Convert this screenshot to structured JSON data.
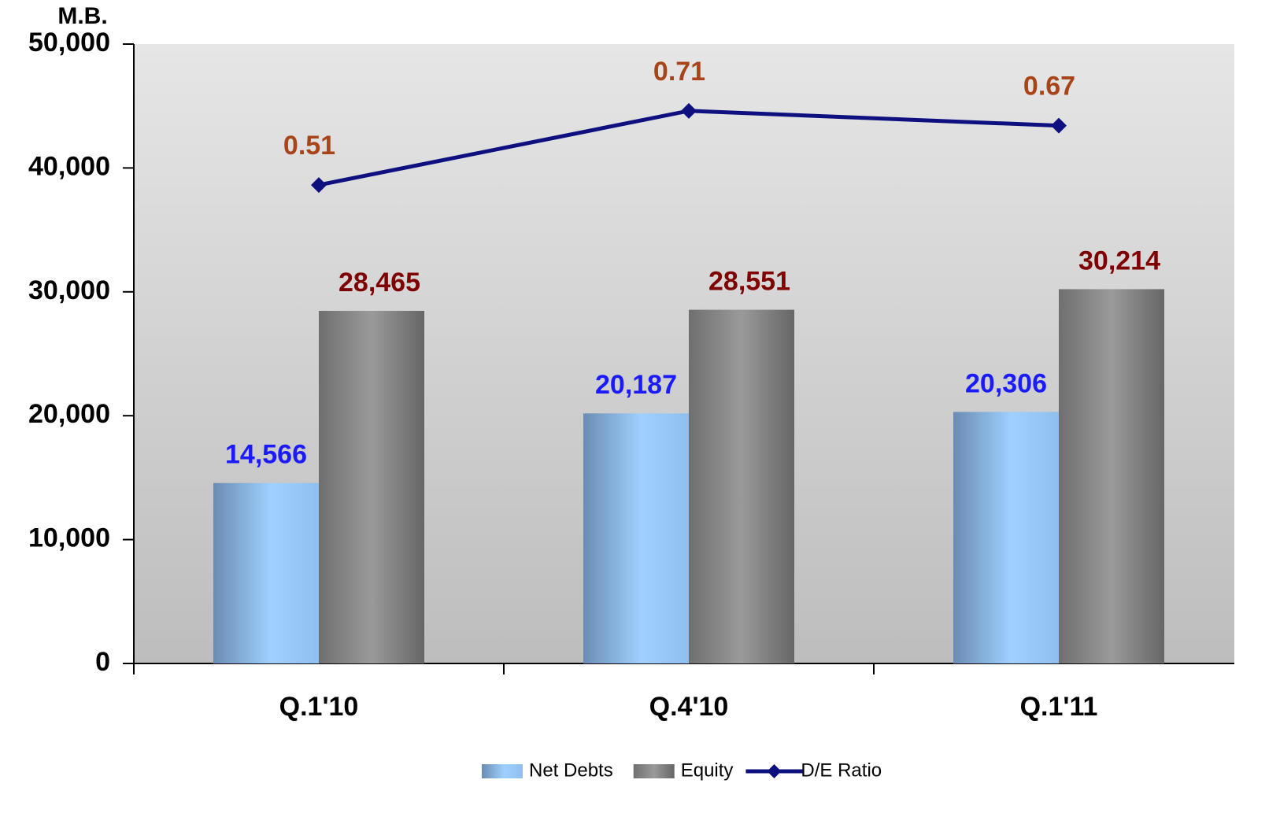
{
  "chart_data": {
    "type": "bar",
    "y_label": "M.B.",
    "categories": [
      "Q.1'10",
      "Q.4'10",
      "Q.1'11"
    ],
    "series": [
      {
        "name": "Net Debts",
        "type": "bar",
        "color": "#8fbfee",
        "values": [
          14566,
          20187,
          20306
        ],
        "value_labels": [
          "14,566",
          "20,187",
          "20,306"
        ],
        "label_color": "#1a1aff"
      },
      {
        "name": "Equity",
        "type": "bar",
        "color": "#8c8c8c",
        "values": [
          28465,
          28551,
          30214
        ],
        "value_labels": [
          "28,465",
          "28,551",
          "30,214"
        ],
        "label_color": "#7f0000"
      },
      {
        "name": "D/E Ratio",
        "type": "line",
        "axis": "y2",
        "color": "#0f1080",
        "values": [
          0.51,
          0.71,
          0.67
        ],
        "label_color": "#a8441a"
      }
    ],
    "ylim": [
      0,
      50000
    ],
    "yticks": [
      0,
      {
        "value": 10000,
        "label": "10,000"
      },
      {
        "value": 20000,
        "label": "20,000"
      },
      {
        "value": 30000,
        "label": "30,000"
      },
      {
        "value": 40000,
        "label": "40,000"
      },
      {
        "value": 50000,
        "label": "50,000"
      }
    ],
    "y2lim": [
      -0.78,
      0.89
    ],
    "legend": "bottom"
  }
}
